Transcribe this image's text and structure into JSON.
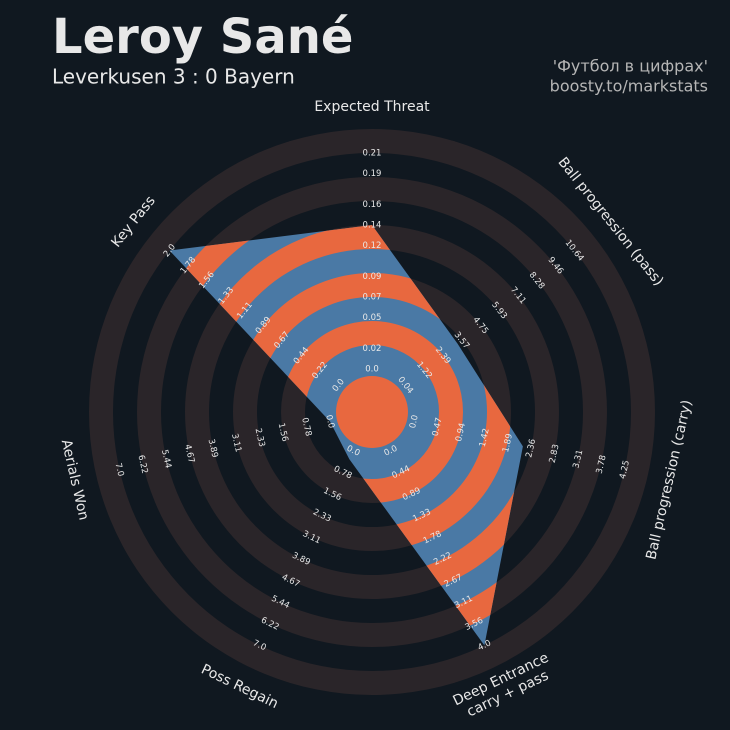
{
  "chart_data": {
    "type": "radar",
    "title": "Leroy Sané",
    "subtitle": "Leverkusen 3 : 0 Bayern",
    "credits": [
      "'Футбол в цифрах'",
      "boosty.to/markstats"
    ],
    "polygon_color": "#4a79a5",
    "ring_color": "#e8683f",
    "background_ring_color": "#2a2529",
    "axes": [
      {
        "label": "Expected Threat",
        "value": 0.14,
        "lim": [
          0,
          0.21
        ],
        "ticks": [
          {
            "value": 0,
            "label": "0.0"
          },
          0.02,
          0.05,
          0.07,
          0.09,
          0.12,
          0.14,
          0.16,
          0.19,
          0.21
        ]
      },
      {
        "label": "Ball progression (pass)",
        "value": 3.3,
        "lim": [
          0.04,
          10.64
        ],
        "ticks": [
          0.04,
          1.22,
          2.39,
          3.57,
          4.75,
          5.93,
          7.11,
          8.28,
          9.46,
          10.64
        ]
      },
      {
        "label": "Ball progression (carry)",
        "value": 2.2,
        "lim": [
          0,
          4.25
        ],
        "ticks": [
          {
            "value": 0,
            "label": "0.0"
          },
          0.47,
          0.94,
          1.42,
          1.89,
          2.36,
          2.83,
          3.31,
          3.78,
          4.25
        ]
      },
      {
        "label": [
          "Deep Entrance",
          "carry + pass"
        ],
        "value": 4.0,
        "lim": [
          0,
          4.0
        ],
        "ticks": [
          {
            "value": 0,
            "label": "0.0"
          },
          0.44,
          0.89,
          1.33,
          1.78,
          2.22,
          2.67,
          3.11,
          3.56,
          {
            "value": 4,
            "label": "4.0"
          }
        ]
      },
      {
        "label": "Poss Regain",
        "value": 0.3,
        "lim": [
          0,
          7.0
        ],
        "ticks": [
          {
            "value": 0,
            "label": "0.0"
          },
          0.78,
          1.56,
          2.33,
          3.11,
          3.89,
          4.67,
          5.44,
          6.22,
          {
            "value": 7,
            "label": "7.0"
          }
        ]
      },
      {
        "label": "Aerials Won",
        "value": 0,
        "lim": [
          0,
          7.0
        ],
        "ticks": [
          {
            "value": 0,
            "label": "0.0"
          },
          0.78,
          1.56,
          2.33,
          3.11,
          3.89,
          4.67,
          5.44,
          6.22,
          {
            "value": 7,
            "label": "7.0"
          }
        ]
      },
      {
        "label": "Key Pass",
        "value": 2.0,
        "lim": [
          0,
          2.0
        ],
        "ticks": [
          {
            "value": 0,
            "label": "0.0"
          },
          0.22,
          0.44,
          0.67,
          0.89,
          1.11,
          1.33,
          1.56,
          1.78,
          {
            "value": 2,
            "label": "2.0"
          }
        ]
      }
    ]
  }
}
